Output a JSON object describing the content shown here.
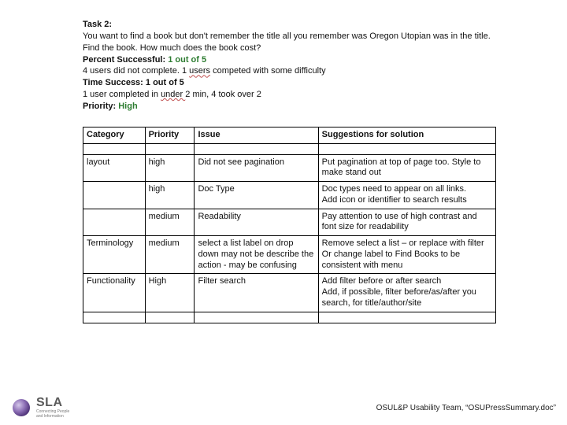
{
  "task": {
    "heading": "Task 2:",
    "body": "You want to find a book but don't remember the title all you remember was Oregon Utopian was in the title. Find the book. How much does the book cost?",
    "percent_label": "Percent Successful:  ",
    "percent_value": "1 out of 5",
    "completion_prefix": "4 users did not complete.  1 ",
    "completion_wavy": "users",
    "completion_suffix": " competed with some difficulty",
    "time_label": "Time Success: 1 out of 5",
    "time_prefix": "1 user completed in ",
    "time_wavy": "under ",
    "time_suffix": "2 min, 4 took over 2",
    "priority_label": "Priority:  ",
    "priority_value": "High"
  },
  "table": {
    "headers": [
      "Category",
      "Priority",
      "Issue",
      "Suggestions for solution"
    ],
    "rows": [
      {
        "category": "",
        "priority": "",
        "issue": "",
        "solution": ""
      },
      {
        "category": "layout",
        "priority": "high",
        "issue": "Did not see pagination",
        "solution": "Put pagination at top of page too. Style to make stand out"
      },
      {
        "category": "",
        "priority": "high",
        "issue": "Doc Type",
        "solution": "Doc types need to appear on all links.\nAdd icon or identifier to search results"
      },
      {
        "category": "",
        "priority": "medium",
        "issue": "Readability",
        "solution": "Pay attention to use of high contrast and font size for readability"
      },
      {
        "category": "Terminology",
        "priority": "medium",
        "issue": "select a list label on drop down may not be describe the action  - may be confusing",
        "solution": "Remove select a list – or replace with filter\nOr change label to Find Books to be consistent with menu"
      },
      {
        "category": "Functionality",
        "priority": "High",
        "issue": "Filter search",
        "solution": "Add filter before or after search\nAdd, if possible, filter before/as/after you search, for title/author/site"
      },
      {
        "category": "",
        "priority": "",
        "issue": "",
        "solution": ""
      }
    ]
  },
  "footer": {
    "logo_wordmark": "SLA",
    "logo_tagline1": "Connecting People",
    "logo_tagline2": "and Information",
    "citation": "OSUL&P Usability Team, “OSUPressSummary.doc”"
  },
  "colors": {
    "text": "#111111",
    "green": "#2e7d32",
    "table_border": "#000000",
    "logo_purple_dark": "#5b3a8a",
    "logo_purple_light": "#b49bd6",
    "logo_text": "#5a5a5a"
  }
}
